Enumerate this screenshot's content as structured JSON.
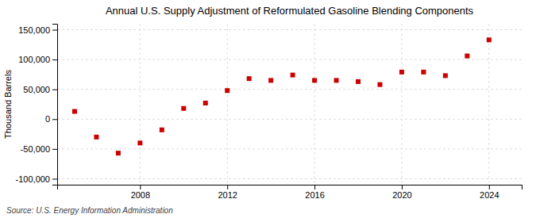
{
  "chart_data": {
    "type": "scatter",
    "title": "Annual U.S. Supply Adjustment of Reformulated Gasoline Blending Components",
    "ylabel": "Thousand Barrels",
    "source": "Source: U.S. Energy Information Administration",
    "x": [
      2005,
      2006,
      2007,
      2008,
      2009,
      2010,
      2011,
      2012,
      2013,
      2014,
      2015,
      2016,
      2017,
      2018,
      2019,
      2020,
      2021,
      2022,
      2023,
      2024
    ],
    "values": [
      13000,
      -30000,
      -57000,
      -40000,
      -18000,
      18000,
      27000,
      48000,
      68000,
      65000,
      74000,
      65000,
      65000,
      63000,
      58000,
      79000,
      79000,
      73000,
      106000,
      133000
    ],
    "color": "#cc0000",
    "marker": "square",
    "grid": true,
    "xlim": [
      2004.2,
      2025.5
    ],
    "ylim": [
      -110000,
      160000
    ],
    "xticks": [
      2008,
      2012,
      2016,
      2020,
      2024
    ],
    "yticks": [
      {
        "value": -100000,
        "label": "-100,000"
      },
      {
        "value": -50000,
        "label": "-50,000"
      },
      0,
      {
        "value": 50000,
        "label": "50,000"
      },
      {
        "value": 100000,
        "label": "100,000"
      },
      {
        "value": 150000,
        "label": "150,000"
      }
    ]
  }
}
